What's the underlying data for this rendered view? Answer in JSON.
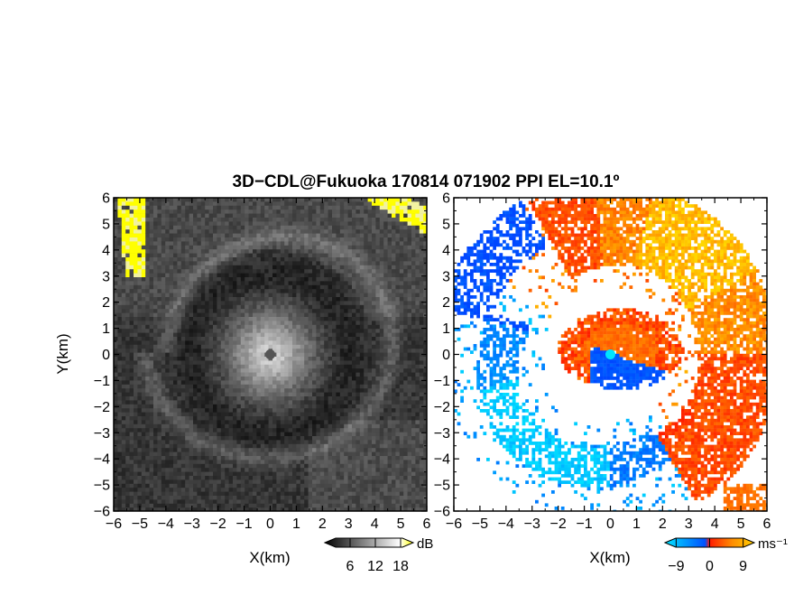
{
  "title": "3D−CDL@Fukuoka 170814 071902 PPI EL=10.1º",
  "chart_data": [
    {
      "type": "heatmap",
      "name": "reflectivity-panel",
      "xlabel": "X(km)",
      "ylabel": "Y(km)",
      "xlim": [
        -6,
        6
      ],
      "ylim": [
        -6,
        6
      ],
      "xticks": [
        "−6",
        "−5",
        "−4",
        "−3",
        "−2",
        "−1",
        "0",
        "1",
        "2",
        "3",
        "4",
        "5",
        "6"
      ],
      "yticks": [
        "6",
        "5",
        "4",
        "3",
        "2",
        "1",
        "0",
        "−1",
        "−2",
        "−3",
        "−4",
        "−5",
        "−6"
      ],
      "colorbar": {
        "unit": "dB",
        "ticks": [
          "6",
          "12",
          "18"
        ],
        "range": [
          0,
          21
        ],
        "colors": [
          "#000000",
          "#ffffff",
          "#ffff00"
        ]
      },
      "features": {
        "center_echo_radius_km": 1.7,
        "inner_dark_ring_radius_km": [
          2.2,
          3.7
        ],
        "outer_bright_band_radius_km": 4.6,
        "clutter_corners": [
          "top-left",
          "top-right"
        ]
      }
    },
    {
      "type": "heatmap",
      "name": "doppler-velocity-panel",
      "xlabel": "X(km)",
      "xlim": [
        -6,
        6
      ],
      "ylim": [
        -6,
        6
      ],
      "xticks": [
        "−6",
        "−5",
        "−4",
        "−3",
        "−2",
        "−1",
        "0",
        "1",
        "2",
        "3",
        "4",
        "5",
        "6"
      ],
      "yticks": [
        "6",
        "5",
        "4",
        "3",
        "2",
        "1",
        "0",
        "−1",
        "−2",
        "−3",
        "−4",
        "−5",
        "−6"
      ],
      "colorbar": {
        "unit": "ms⁻¹",
        "ticks": [
          "−9",
          "0",
          "9"
        ],
        "range": [
          -12,
          12
        ],
        "colors": [
          "#00e5ff",
          "#0050ff",
          "#ff1a00",
          "#ff8c00",
          "#ffd000"
        ]
      },
      "features": {
        "negative_lobe": "south-east of center",
        "positive_lobe": "north-west of center",
        "outer_positive_arc": "north to east",
        "outer_negative_arc": "west to south"
      }
    }
  ]
}
